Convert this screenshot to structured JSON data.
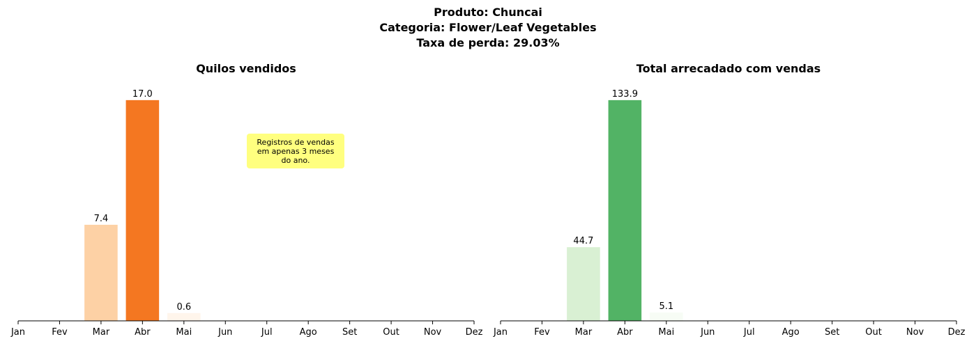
{
  "figure": {
    "title_lines": [
      "Produto: Chuncai",
      "Categoria: Flower/Leaf Vegetables",
      "Taxa de perda: 29.03%"
    ]
  },
  "chart_data": [
    {
      "type": "bar",
      "title": "Quilos vendidos",
      "categories": [
        "Jan",
        "Fev",
        "Mar",
        "Abr",
        "Mai",
        "Jun",
        "Jul",
        "Ago",
        "Set",
        "Out",
        "Nov",
        "Dez"
      ],
      "values": [
        0,
        0,
        7.4,
        17.0,
        0.6,
        0,
        0,
        0,
        0,
        0,
        0,
        0
      ],
      "data_labels": [
        "",
        "",
        "7.4",
        "17.0",
        "0.6",
        "",
        "",
        "",
        "",
        "",
        "",
        ""
      ],
      "xlabel": "",
      "ylabel": "",
      "ylim": [
        0,
        17.85
      ],
      "grid": false,
      "colormap": "Oranges",
      "bar_colors": [
        "#fff5eb",
        "#fff5eb",
        "#fdd1a5",
        "#f47721",
        "#fff5eb",
        "#fff5eb",
        "#fff5eb",
        "#fff5eb",
        "#fff5eb",
        "#fff5eb",
        "#fff5eb",
        "#fff5eb"
      ],
      "annotation": "Registros de vendas\nem apenas 3 meses\ndo ano."
    },
    {
      "type": "bar",
      "title": "Total arrecadado com vendas",
      "categories": [
        "Jan",
        "Fev",
        "Mar",
        "Abr",
        "Mai",
        "Jun",
        "Jul",
        "Ago",
        "Set",
        "Out",
        "Nov",
        "Dez"
      ],
      "values": [
        0,
        0,
        44.7,
        133.9,
        5.1,
        0,
        0,
        0,
        0,
        0,
        0,
        0
      ],
      "data_labels": [
        "",
        "",
        "44.7",
        "133.9",
        "5.1",
        "",
        "",
        "",
        "",
        "",
        "",
        ""
      ],
      "xlabel": "",
      "ylabel": "",
      "ylim": [
        0,
        140.6
      ],
      "grid": false,
      "colormap": "Greens",
      "bar_colors": [
        "#f7fcf5",
        "#f7fcf5",
        "#d9f0d3",
        "#52b365",
        "#f7fcf5",
        "#f7fcf5",
        "#f7fcf5",
        "#f7fcf5",
        "#f7fcf5",
        "#f7fcf5",
        "#f7fcf5",
        "#f7fcf5"
      ]
    }
  ]
}
